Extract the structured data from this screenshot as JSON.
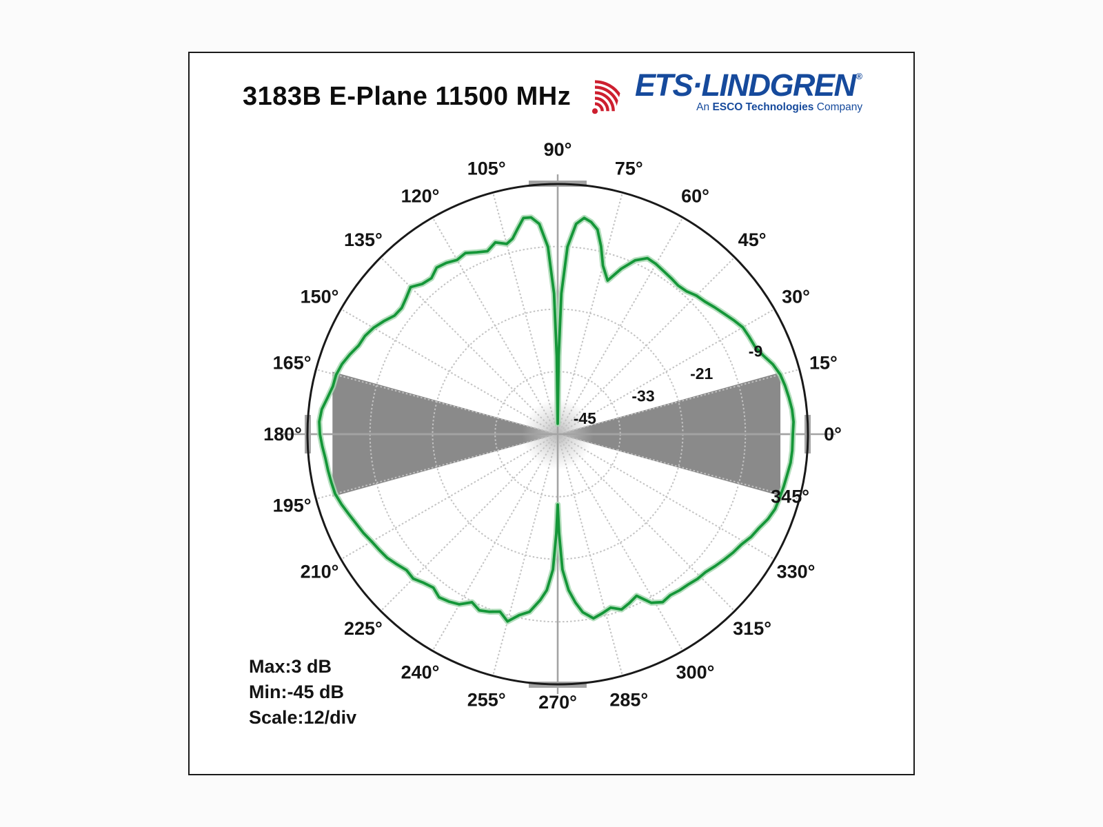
{
  "page": {
    "title": "3183B E-Plane 11500 MHz"
  },
  "logo": {
    "icon": "radio-waves-icon",
    "brand": "ETS·LINDGREN",
    "registered": "®",
    "tagline_an": "An",
    "tagline_esco": "ESCO Technologies",
    "tagline_company": "Company"
  },
  "stats": {
    "max": "Max:3 dB",
    "min": "Min:-45 dB",
    "scale": "Scale:12/div"
  },
  "colors": {
    "trace_green": "#149638",
    "trace_halo": "#a7d8b1",
    "mask_gray": "#8a8a8a",
    "grid_gray": "#c2c2c2",
    "cardinal_gray": "#b0b0b0",
    "axis_gray": "#a3a3a3",
    "outline_black": "#191919",
    "label_black": "#141414",
    "brand_blue": "#164a9c",
    "logo_red": "#cd1f2f"
  },
  "chart_data": {
    "type": "line",
    "projection": "polar",
    "title": "3183B E-Plane 11500 MHz",
    "units": "dB",
    "grid_on": true,
    "legend": null,
    "r_axis": {
      "min_db": -45,
      "max_db": 3,
      "db_per_division": 12,
      "rings_db": [
        -9,
        -21,
        -33
      ],
      "ring_labels": [
        {
          "db": -9,
          "label": "-9"
        },
        {
          "db": -21,
          "label": "-21"
        },
        {
          "db": -33,
          "label": "-33"
        },
        {
          "db": -45,
          "label": "-45"
        }
      ],
      "ring_label_angle_deg": 21
    },
    "theta_axis": {
      "spoke_step_deg": 15,
      "tick_labels": [
        {
          "deg": 0,
          "label": "0°"
        },
        {
          "deg": 15,
          "label": "15°"
        },
        {
          "deg": 30,
          "label": "30°"
        },
        {
          "deg": 45,
          "label": "45°"
        },
        {
          "deg": 60,
          "label": "60°"
        },
        {
          "deg": 75,
          "label": "75°"
        },
        {
          "deg": 90,
          "label": "90°"
        },
        {
          "deg": 105,
          "label": "105°"
        },
        {
          "deg": 120,
          "label": "120°"
        },
        {
          "deg": 135,
          "label": "135°"
        },
        {
          "deg": 150,
          "label": "150°"
        },
        {
          "deg": 165,
          "label": "165°"
        },
        {
          "deg": 180,
          "label": "180°"
        },
        {
          "deg": 195,
          "label": "195°"
        },
        {
          "deg": 210,
          "label": "210°"
        },
        {
          "deg": 225,
          "label": "225°"
        },
        {
          "deg": 240,
          "label": "240°"
        },
        {
          "deg": 255,
          "label": "255°"
        },
        {
          "deg": 270,
          "label": "270°"
        },
        {
          "deg": 285,
          "label": "285°"
        },
        {
          "deg": 300,
          "label": "300°"
        },
        {
          "deg": 315,
          "label": "315°"
        },
        {
          "deg": 330,
          "label": "330°"
        },
        {
          "deg": 345,
          "label": "345°"
        }
      ],
      "label_radius_extra": {
        "90": 14,
        "270": -10,
        "345": -50
      }
    },
    "mask_sectors": [
      {
        "center_deg": 0,
        "half_angle_deg": 15.5,
        "extent_fraction": 0.89
      },
      {
        "center_deg": 180,
        "half_angle_deg": 15.5,
        "extent_fraction": 0.9
      }
    ],
    "series": [
      {
        "name": "e-plane-gain-pattern",
        "color": "#149638",
        "points_deg_db": [
          [
            0,
            0.1
          ],
          [
            3,
            0.3
          ],
          [
            6,
            0.2
          ],
          [
            9,
            -0.1
          ],
          [
            12,
            -0.4
          ],
          [
            15,
            -0.8
          ],
          [
            18,
            -1.6
          ],
          [
            21,
            -2.8
          ],
          [
            24,
            -3.6
          ],
          [
            27,
            -3.8
          ],
          [
            30,
            -4.0
          ],
          [
            33,
            -4.8
          ],
          [
            36,
            -5.6
          ],
          [
            39,
            -6.3
          ],
          [
            42,
            -7.0
          ],
          [
            45,
            -7.4
          ],
          [
            48,
            -8.1
          ],
          [
            51,
            -8.3
          ],
          [
            54,
            -8.0
          ],
          [
            57,
            -7.7
          ],
          [
            60,
            -7.3
          ],
          [
            63,
            -7.1
          ],
          [
            66,
            -8.5
          ],
          [
            69,
            -11.0
          ],
          [
            72,
            -14.0
          ],
          [
            75,
            -11.5
          ],
          [
            77,
            -8.0
          ],
          [
            79,
            -5.0
          ],
          [
            81,
            -3.8
          ],
          [
            83,
            -3.2
          ],
          [
            85,
            -4.5
          ],
          [
            87,
            -9.0
          ],
          [
            88.5,
            -18.0
          ],
          [
            89.3,
            -30.0
          ],
          [
            90,
            -43.0
          ],
          [
            90.7,
            -30.0
          ],
          [
            91.5,
            -18.0
          ],
          [
            93,
            -9.0
          ],
          [
            95,
            -4.5
          ],
          [
            97,
            -3.1
          ],
          [
            99,
            -3.0
          ],
          [
            101,
            -4.8
          ],
          [
            103,
            -6.5
          ],
          [
            105,
            -7.2
          ],
          [
            108,
            -6.3
          ],
          [
            111,
            -7.4
          ],
          [
            114,
            -6.8
          ],
          [
            117,
            -6.0
          ],
          [
            120,
            -6.4
          ],
          [
            123,
            -5.8
          ],
          [
            126,
            -5.5
          ],
          [
            129,
            -6.5
          ],
          [
            132,
            -6.2
          ],
          [
            135,
            -5.1
          ],
          [
            138,
            -5.9
          ],
          [
            141,
            -6.5
          ],
          [
            144,
            -6.3
          ],
          [
            147,
            -5.2
          ],
          [
            150,
            -4.2
          ],
          [
            153,
            -3.5
          ],
          [
            156,
            -3.2
          ],
          [
            159,
            -2.3
          ],
          [
            162,
            -1.5
          ],
          [
            165,
            -1.0
          ],
          [
            168,
            -0.9
          ],
          [
            171,
            -0.3
          ],
          [
            174,
            0.5
          ],
          [
            177,
            0.8
          ],
          [
            180,
            0.6
          ],
          [
            183,
            0.2
          ],
          [
            186,
            -0.2
          ],
          [
            189,
            -0.4
          ],
          [
            192,
            -0.6
          ],
          [
            195,
            -0.8
          ],
          [
            198,
            -1.4
          ],
          [
            201,
            -2.1
          ],
          [
            204,
            -2.7
          ],
          [
            207,
            -3.2
          ],
          [
            210,
            -3.8
          ],
          [
            213,
            -4.2
          ],
          [
            216,
            -4.6
          ],
          [
            219,
            -5.3
          ],
          [
            222,
            -6.0
          ],
          [
            225,
            -5.8
          ],
          [
            228,
            -6.6
          ],
          [
            231,
            -7.1
          ],
          [
            234,
            -6.3
          ],
          [
            237,
            -6.7
          ],
          [
            240,
            -7.3
          ],
          [
            243,
            -8.8
          ],
          [
            246,
            -8.0
          ],
          [
            249,
            -8.5
          ],
          [
            252,
            -9.2
          ],
          [
            255,
            -7.8
          ],
          [
            258,
            -9.5
          ],
          [
            261,
            -10.5
          ],
          [
            264,
            -13.0
          ],
          [
            266,
            -15.0
          ],
          [
            268,
            -19.0
          ],
          [
            269.2,
            -26.0
          ],
          [
            270,
            -31.5
          ],
          [
            270.8,
            -26.0
          ],
          [
            272,
            -19.0
          ],
          [
            274,
            -15.0
          ],
          [
            276,
            -12.5
          ],
          [
            278,
            -10.5
          ],
          [
            281,
            -9.0
          ],
          [
            284,
            -9.6
          ],
          [
            287,
            -10.2
          ],
          [
            290,
            -9.2
          ],
          [
            293,
            -9.8
          ],
          [
            296,
            -10.5
          ],
          [
            299,
            -8.0
          ],
          [
            302,
            -7.0
          ],
          [
            305,
            -7.3
          ],
          [
            308,
            -7.0
          ],
          [
            311,
            -6.8
          ],
          [
            314,
            -6.4
          ],
          [
            317,
            -6.2
          ],
          [
            320,
            -5.6
          ],
          [
            323,
            -5.0
          ],
          [
            326,
            -4.4
          ],
          [
            329,
            -3.9
          ],
          [
            332,
            -3.0
          ],
          [
            335,
            -2.4
          ],
          [
            338,
            -1.5
          ],
          [
            341,
            -0.9
          ],
          [
            344,
            -0.7
          ],
          [
            347,
            -0.5
          ],
          [
            350,
            -0.3
          ],
          [
            353,
            0.0
          ],
          [
            356,
            0.1
          ]
        ]
      }
    ]
  }
}
